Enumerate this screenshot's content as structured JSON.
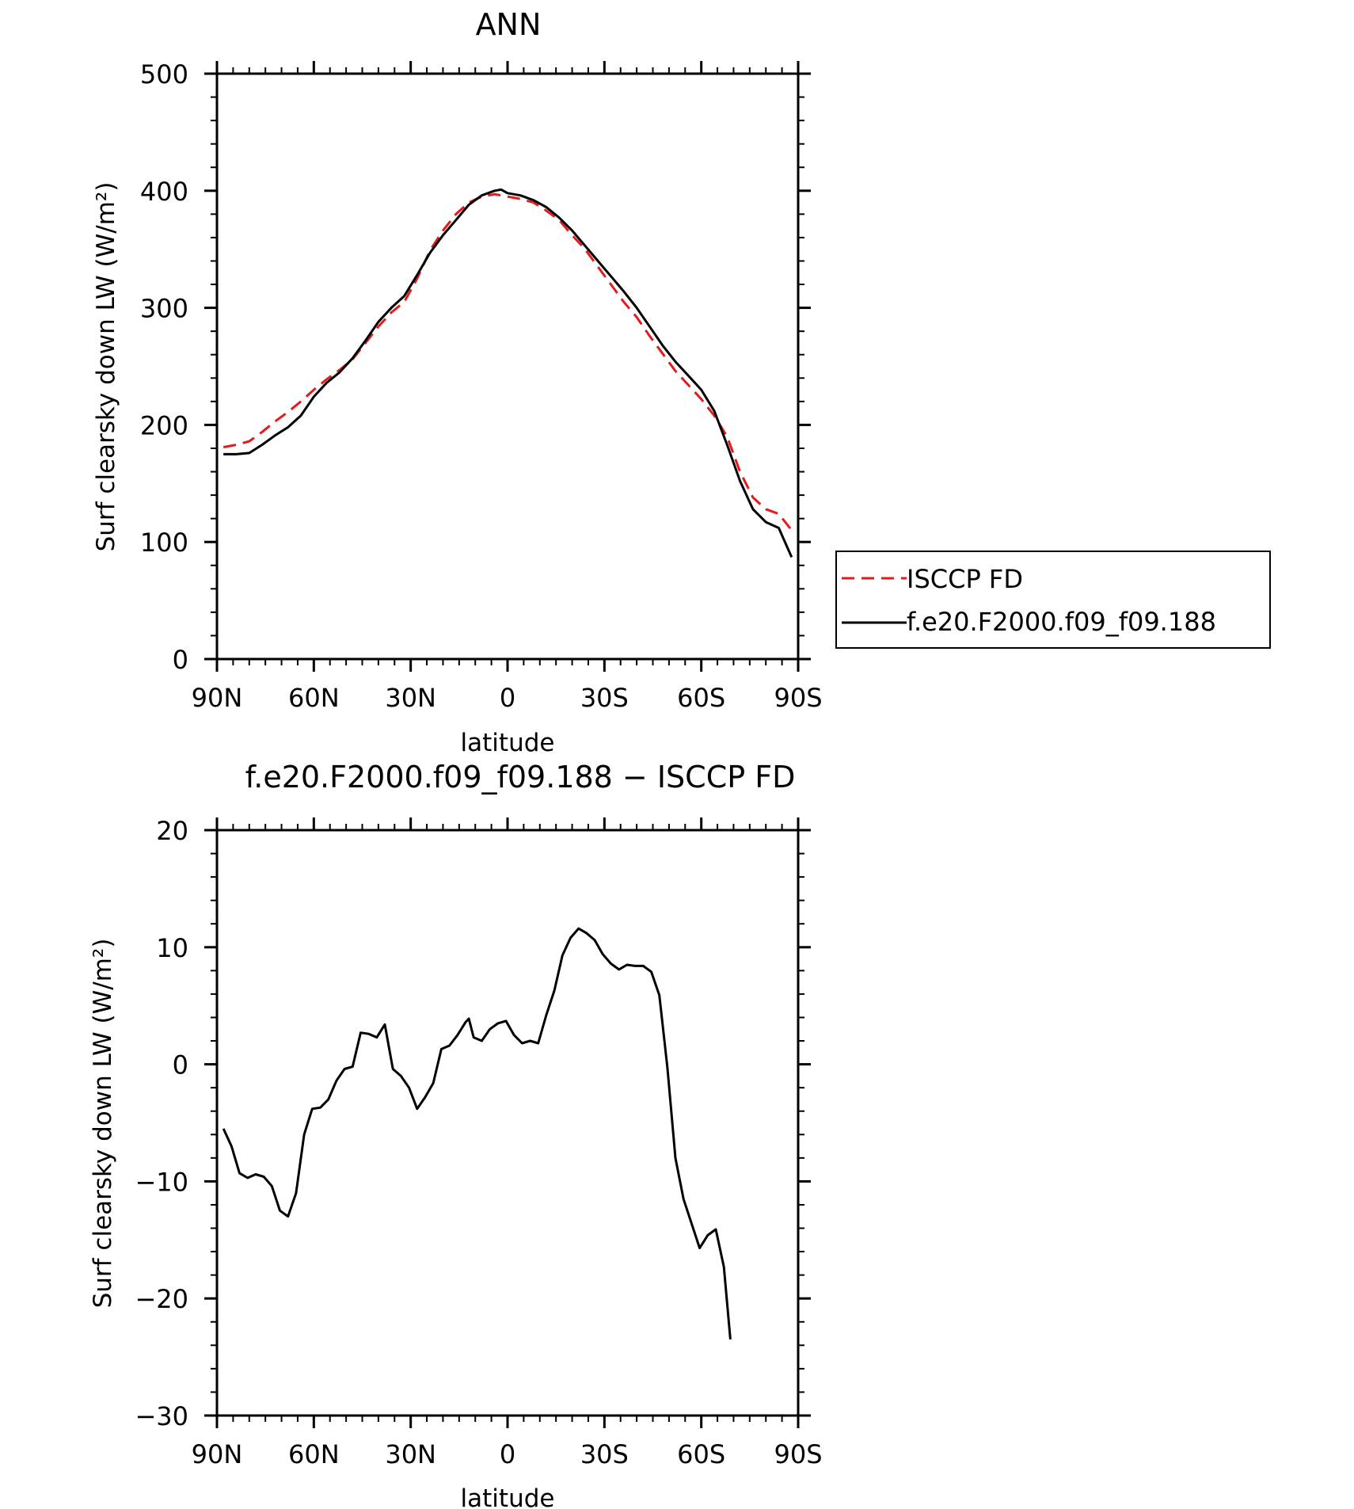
{
  "colors": {
    "isccp": "#e41a1c",
    "model": "#000000",
    "axis": "#000000"
  },
  "chart_data": [
    {
      "type": "line",
      "title": "ANN",
      "xlabel": "latitude",
      "ylabel": "Surf clearsky down LW (W/m²)",
      "xlim": [
        -90,
        90
      ],
      "ylim": [
        0,
        500
      ],
      "x_ticks": [
        {
          "value": -90,
          "label": "90N"
        },
        {
          "value": -60,
          "label": "60N"
        },
        {
          "value": -30,
          "label": "30N"
        },
        {
          "value": 0,
          "label": "0"
        },
        {
          "value": 30,
          "label": "30S"
        },
        {
          "value": 60,
          "label": "60S"
        },
        {
          "value": 90,
          "label": "90S"
        }
      ],
      "y_ticks": [
        0,
        100,
        200,
        300,
        400,
        500
      ],
      "legend_position": "right",
      "series": [
        {
          "name": "ISCCP FD",
          "style": "dashed",
          "color": "#e41a1c",
          "points": [
            [
              -88,
              181
            ],
            [
              -84,
              183
            ],
            [
              -80,
              186
            ],
            [
              -76,
              194
            ],
            [
              -72,
              203
            ],
            [
              -68,
              211
            ],
            [
              -64,
              220
            ],
            [
              -60,
              230
            ],
            [
              -56,
              239
            ],
            [
              -52,
              247
            ],
            [
              -48,
              256
            ],
            [
              -44,
              270
            ],
            [
              -40,
              284
            ],
            [
              -36,
              296
            ],
            [
              -32,
              305
            ],
            [
              -28,
              325
            ],
            [
              -24,
              349
            ],
            [
              -20,
              366
            ],
            [
              -16,
              380
            ],
            [
              -12,
              390
            ],
            [
              -8,
              395
            ],
            [
              -4,
              397
            ],
            [
              0,
              395
            ],
            [
              4,
              393
            ],
            [
              8,
              390
            ],
            [
              12,
              383
            ],
            [
              16,
              375
            ],
            [
              20,
              362
            ],
            [
              24,
              350
            ],
            [
              28,
              335
            ],
            [
              32,
              320
            ],
            [
              36,
              305
            ],
            [
              40,
              292
            ],
            [
              44,
              276
            ],
            [
              48,
              261
            ],
            [
              52,
              246
            ],
            [
              56,
              234
            ],
            [
              60,
              222
            ],
            [
              64,
              208
            ],
            [
              68,
              190
            ],
            [
              72,
              160
            ],
            [
              76,
              138
            ],
            [
              80,
              128
            ],
            [
              84,
              124
            ],
            [
              88,
              110
            ]
          ]
        },
        {
          "name": "f.e20.F2000.f09_f09.188",
          "style": "solid",
          "color": "#000000",
          "points": [
            [
              -88,
              175
            ],
            [
              -84,
              175
            ],
            [
              -80,
              176
            ],
            [
              -76,
              183
            ],
            [
              -72,
              191
            ],
            [
              -68,
              198
            ],
            [
              -64,
              208
            ],
            [
              -60,
              224
            ],
            [
              -56,
              236
            ],
            [
              -52,
              245
            ],
            [
              -48,
              257
            ],
            [
              -44,
              272
            ],
            [
              -40,
              288
            ],
            [
              -36,
              300
            ],
            [
              -32,
              310
            ],
            [
              -28,
              328
            ],
            [
              -24,
              347
            ],
            [
              -20,
              362
            ],
            [
              -16,
              375
            ],
            [
              -12,
              388
            ],
            [
              -8,
              396
            ],
            [
              -4,
              400
            ],
            [
              -2,
              401
            ],
            [
              0,
              398
            ],
            [
              4,
              396
            ],
            [
              8,
              392
            ],
            [
              12,
              386
            ],
            [
              16,
              377
            ],
            [
              20,
              366
            ],
            [
              24,
              353
            ],
            [
              28,
              340
            ],
            [
              32,
              327
            ],
            [
              36,
              314
            ],
            [
              40,
              300
            ],
            [
              44,
              284
            ],
            [
              48,
              268
            ],
            [
              52,
              254
            ],
            [
              56,
              242
            ],
            [
              60,
              230
            ],
            [
              64,
              212
            ],
            [
              68,
              183
            ],
            [
              72,
              152
            ],
            [
              76,
              128
            ],
            [
              80,
              117
            ],
            [
              84,
              112
            ],
            [
              88,
              87
            ]
          ]
        }
      ]
    },
    {
      "type": "line",
      "title": "f.e20.F2000.f09_f09.188 − ISCCP FD",
      "xlabel": "latitude",
      "ylabel": "Surf clearsky down LW (W/m²)",
      "xlim": [
        -90,
        90
      ],
      "ylim": [
        -30,
        20
      ],
      "x_ticks": [
        {
          "value": -90,
          "label": "90N"
        },
        {
          "value": -60,
          "label": "60N"
        },
        {
          "value": -30,
          "label": "30N"
        },
        {
          "value": 0,
          "label": "0"
        },
        {
          "value": 30,
          "label": "30S"
        },
        {
          "value": 60,
          "label": "60S"
        },
        {
          "value": 90,
          "label": "90S"
        }
      ],
      "y_ticks": [
        -30,
        -20,
        -10,
        0,
        10,
        20
      ],
      "series": [
        {
          "style": "solid",
          "color": "#000000",
          "points": [
            [
              -88,
              -5.5
            ],
            [
              -85.5,
              -7
            ],
            [
              -83,
              -9.3
            ],
            [
              -80.5,
              -9.7
            ],
            [
              -78,
              -9.4
            ],
            [
              -75.5,
              -9.6
            ],
            [
              -73,
              -10.4
            ],
            [
              -70.5,
              -12.5
            ],
            [
              -68,
              -13
            ],
            [
              -65.5,
              -11
            ],
            [
              -63,
              -6
            ],
            [
              -60.5,
              -3.8
            ],
            [
              -58,
              -3.7
            ],
            [
              -55.5,
              -3
            ],
            [
              -53,
              -1.4
            ],
            [
              -50.5,
              -0.4
            ],
            [
              -48,
              -0.2
            ],
            [
              -45.5,
              2.7
            ],
            [
              -43,
              2.6
            ],
            [
              -40.5,
              2.3
            ],
            [
              -38,
              3.4
            ],
            [
              -35.5,
              -0.4
            ],
            [
              -33,
              -1
            ],
            [
              -30.5,
              -2
            ],
            [
              -28,
              -3.8
            ],
            [
              -25.5,
              -2.8
            ],
            [
              -23,
              -1.6
            ],
            [
              -20.5,
              1.3
            ],
            [
              -18,
              1.6
            ],
            [
              -15.5,
              2.5
            ],
            [
              -13,
              3.6
            ],
            [
              -12,
              3.9
            ],
            [
              -10.5,
              2.3
            ],
            [
              -8,
              2
            ],
            [
              -5.5,
              3
            ],
            [
              -3,
              3.5
            ],
            [
              -0.5,
              3.7
            ],
            [
              2,
              2.5
            ],
            [
              4.5,
              1.8
            ],
            [
              7,
              2
            ],
            [
              9.5,
              1.8
            ],
            [
              12,
              4.2
            ],
            [
              14.5,
              6.3
            ],
            [
              17,
              9.3
            ],
            [
              19.5,
              10.8
            ],
            [
              22,
              11.6
            ],
            [
              24.5,
              11.2
            ],
            [
              27,
              10.6
            ],
            [
              29.5,
              9.4
            ],
            [
              32,
              8.6
            ],
            [
              34.5,
              8.1
            ],
            [
              37,
              8.5
            ],
            [
              39.5,
              8.4
            ],
            [
              42,
              8.4
            ],
            [
              44.5,
              7.9
            ],
            [
              47,
              5.9
            ],
            [
              49.5,
              -0.3
            ],
            [
              52,
              -8
            ],
            [
              54.5,
              -11.5
            ],
            [
              57,
              -13.6
            ],
            [
              59.5,
              -15.7
            ],
            [
              62,
              -14.6
            ],
            [
              64.5,
              -14.1
            ],
            [
              67,
              -17.3
            ],
            [
              69,
              -23.5
            ]
          ]
        }
      ]
    }
  ]
}
